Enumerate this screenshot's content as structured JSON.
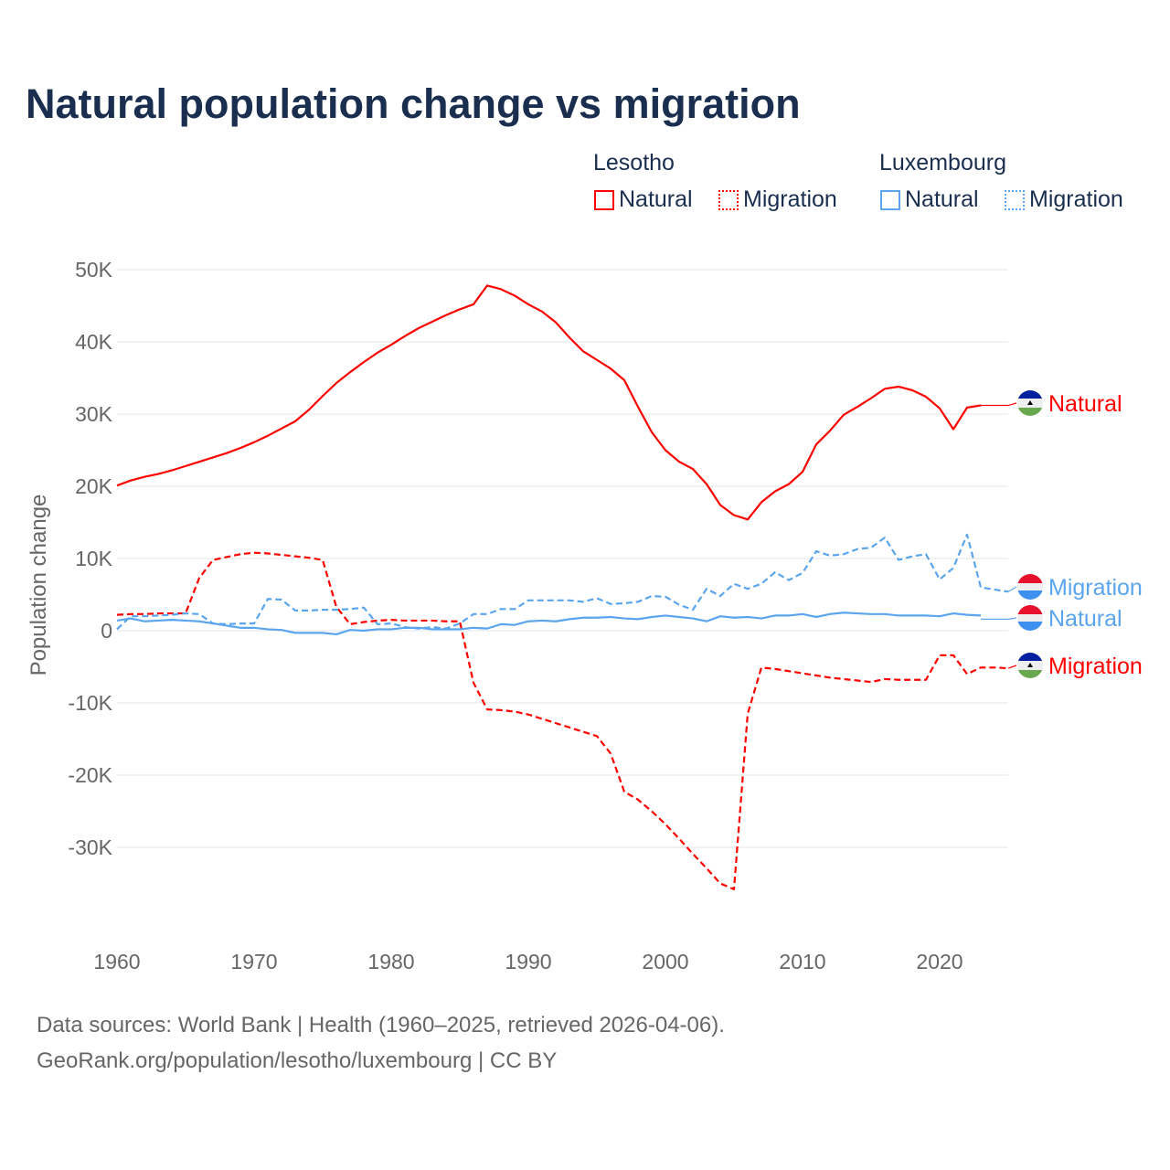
{
  "chart_data": {
    "type": "line",
    "title": "Natural population change vs migration",
    "ylabel": "Population change",
    "xlabel": "",
    "xlim": [
      1960,
      2025
    ],
    "ylim": [
      -40000,
      50000
    ],
    "x_ticks": [
      "1960",
      "1970",
      "1980",
      "1990",
      "2000",
      "2010",
      "2020"
    ],
    "y_ticks": [
      {
        "v": 50000,
        "label": "50K"
      },
      {
        "v": 40000,
        "label": "40K"
      },
      {
        "v": 30000,
        "label": "30K"
      },
      {
        "v": 20000,
        "label": "20K"
      },
      {
        "v": 10000,
        "label": "10K"
      },
      {
        "v": 0,
        "label": "0"
      },
      {
        "v": -10000,
        "label": "-10K"
      },
      {
        "v": -20000,
        "label": "-20K"
      },
      {
        "v": -30000,
        "label": "-30K"
      }
    ],
    "grid": true,
    "legend": {
      "groups": [
        {
          "name": "Lesotho",
          "items": [
            "Natural",
            "Migration"
          ]
        },
        {
          "name": "Luxembourg",
          "items": [
            "Natural",
            "Migration"
          ]
        }
      ],
      "placement": "top-right"
    },
    "series": [
      {
        "name": "Lesotho Natural",
        "country": "Lesotho",
        "kind": "Natural",
        "color": "#ff0000",
        "dash": false,
        "start": 1960,
        "values": [
          20.1,
          20.8,
          21.3,
          21.7,
          22.2,
          22.8,
          23.4,
          24.0,
          24.6,
          25.3,
          26.1,
          27.0,
          28.0,
          29.0,
          30.6,
          32.5,
          34.3,
          35.8,
          37.2,
          38.5,
          39.6,
          40.8,
          41.9,
          42.8,
          43.7,
          44.5,
          45.2,
          47.8,
          47.3,
          46.4,
          45.2,
          44.2,
          42.7,
          40.6,
          38.7,
          37.5,
          36.3,
          34.7,
          31.0,
          27.5,
          25.0,
          23.4,
          22.4,
          20.3,
          17.4,
          16.0,
          15.4,
          17.8,
          19.3,
          20.3,
          22.0,
          25.8,
          27.7,
          29.9,
          31.0,
          32.2,
          33.5,
          33.8,
          33.3,
          32.4,
          30.8,
          27.9,
          30.9,
          31.2
        ],
        "extend_to": 2025,
        "end_label": "Natural"
      },
      {
        "name": "Lesotho Migration",
        "country": "Lesotho",
        "kind": "Migration",
        "color": "#ff0000",
        "dash": true,
        "start": 1960,
        "values": [
          2.2,
          2.3,
          2.3,
          2.4,
          2.4,
          2.4,
          7.3,
          9.8,
          10.2,
          10.6,
          10.8,
          10.7,
          10.5,
          10.3,
          10.1,
          9.8,
          3.3,
          0.9,
          1.2,
          1.4,
          1.5,
          1.4,
          1.4,
          1.4,
          1.3,
          1.3,
          -7.2,
          -10.9,
          -11.0,
          -11.2,
          -11.6,
          -12.2,
          -12.8,
          -13.4,
          -14.0,
          -14.6,
          -17.0,
          -22.3,
          -23.4,
          -25.0,
          -26.8,
          -28.8,
          -30.9,
          -32.9,
          -35.0,
          -35.8,
          -11.5,
          -5.1,
          -5.3,
          -5.6,
          -5.9,
          -6.2,
          -6.5,
          -6.7,
          -6.9,
          -7.1,
          -6.7,
          -6.8,
          -6.8,
          -6.8,
          -3.4,
          -3.4,
          -6.0,
          -5.1,
          -5.1,
          -5.2
        ],
        "extend_to": 2025,
        "end_label": "Migration"
      },
      {
        "name": "Luxembourg Natural",
        "country": "Luxembourg",
        "kind": "Natural",
        "color": "#5aa5ee",
        "dash": false,
        "start": 1960,
        "values": [
          1.4,
          1.7,
          1.3,
          1.4,
          1.5,
          1.4,
          1.3,
          1.0,
          0.7,
          0.4,
          0.4,
          0.2,
          0.1,
          -0.3,
          -0.3,
          -0.3,
          -0.5,
          0.1,
          0.0,
          0.2,
          0.2,
          0.4,
          0.4,
          0.2,
          0.2,
          0.2,
          0.4,
          0.3,
          0.9,
          0.8,
          1.3,
          1.4,
          1.3,
          1.6,
          1.8,
          1.8,
          1.9,
          1.7,
          1.6,
          1.9,
          2.1,
          1.9,
          1.7,
          1.3,
          2.0,
          1.8,
          1.9,
          1.7,
          2.1,
          2.1,
          2.3,
          1.9,
          2.3,
          2.5,
          2.4,
          2.3,
          2.3,
          2.1,
          2.1,
          2.1,
          2.0,
          2.4,
          2.2,
          2.1
        ],
        "extend_to": 2025,
        "extend_value": 1.6,
        "end_label": "Natural"
      },
      {
        "name": "Luxembourg Migration",
        "country": "Luxembourg",
        "kind": "Migration",
        "color": "#5aa5ee",
        "dash": true,
        "start": 1960,
        "values": [
          0.2,
          2.0,
          2.0,
          2.1,
          2.2,
          2.4,
          2.3,
          1.0,
          0.9,
          1.0,
          1.0,
          4.4,
          4.3,
          2.8,
          2.8,
          2.9,
          2.9,
          3.0,
          3.2,
          0.9,
          1.0,
          0.5,
          0.3,
          0.5,
          0.3,
          1.0,
          2.3,
          2.3,
          3.0,
          3.0,
          4.2,
          4.2,
          4.2,
          4.2,
          4.0,
          4.5,
          3.7,
          3.8,
          4.0,
          4.8,
          4.7,
          3.6,
          2.9,
          5.8,
          4.8,
          6.5,
          5.8,
          6.5,
          8.1,
          7.0,
          8.0,
          11.0,
          10.4,
          10.6,
          11.3,
          11.5,
          12.9,
          9.8,
          10.3,
          10.6,
          7.1,
          8.7,
          13.3,
          6.0,
          5.7,
          5.4
        ],
        "extend_to": 2025,
        "end_label": "Migration"
      }
    ],
    "value_unit": "thousands"
  },
  "footer": {
    "line1": "Data sources: World Bank | Health (1960–2025, retrieved 2026-04-06).",
    "line2": "GeoRank.org/population/lesotho/luxembourg | CC BY"
  }
}
